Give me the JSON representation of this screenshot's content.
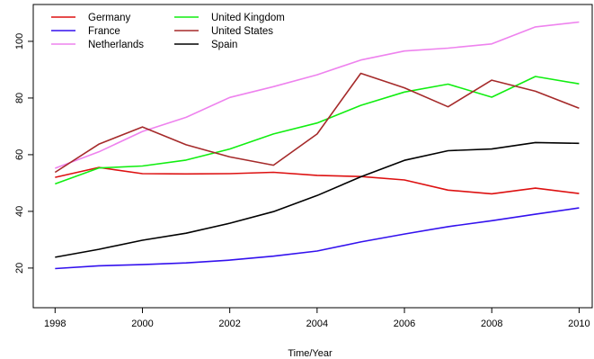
{
  "chart_data": {
    "type": "line",
    "title": "",
    "xlabel": "Time/Year",
    "ylabel": "",
    "x": [
      1998,
      1999,
      2000,
      2001,
      2002,
      2003,
      2004,
      2005,
      2006,
      2007,
      2008,
      2009,
      2010
    ],
    "xlim": [
      1997.5,
      2010.3
    ],
    "ylim": [
      6,
      113
    ],
    "xticks": [
      1998,
      2000,
      2002,
      2004,
      2006,
      2008,
      2010
    ],
    "yticks": [
      20,
      40,
      60,
      80,
      100
    ],
    "grid": false,
    "legend_position": "top-left",
    "series": [
      {
        "name": "Germany",
        "color": "#dd1111",
        "values": [
          52,
          55.5,
          53.3,
          53.2,
          53.3,
          53.8,
          52.7,
          52.3,
          51.1,
          47.5,
          46.2,
          48.2,
          46.3
        ]
      },
      {
        "name": "France",
        "color": "#3311ee",
        "values": [
          19.8,
          20.8,
          21.2,
          21.8,
          22.8,
          24.2,
          26,
          29.2,
          32,
          34.6,
          36.7,
          39,
          41.2
        ]
      },
      {
        "name": "Netherlands",
        "color": "#ee82ee",
        "values": [
          55.2,
          61,
          68.2,
          73.2,
          80.2,
          84,
          88.2,
          93.4,
          96.6,
          97.6,
          99.1,
          105.1,
          106.8
        ]
      },
      {
        "name": "United Kingdom",
        "color": "#11ee11",
        "values": [
          49.7,
          55.3,
          56,
          58.1,
          62,
          67.3,
          71.2,
          77.4,
          82.1,
          84.9,
          80.3,
          87.6,
          85
        ]
      },
      {
        "name": "United States",
        "color": "#a52a2a",
        "values": [
          53.8,
          63.7,
          69.8,
          63.5,
          59.2,
          56.3,
          67.3,
          88.7,
          83.6,
          76.9,
          86.3,
          82.4,
          76.4
        ]
      },
      {
        "name": "Spain",
        "color": "#000000",
        "values": [
          23.8,
          26.6,
          29.8,
          32.3,
          35.8,
          39.9,
          45.6,
          52.2,
          58,
          61.4,
          62,
          64.3,
          64
        ]
      }
    ]
  }
}
